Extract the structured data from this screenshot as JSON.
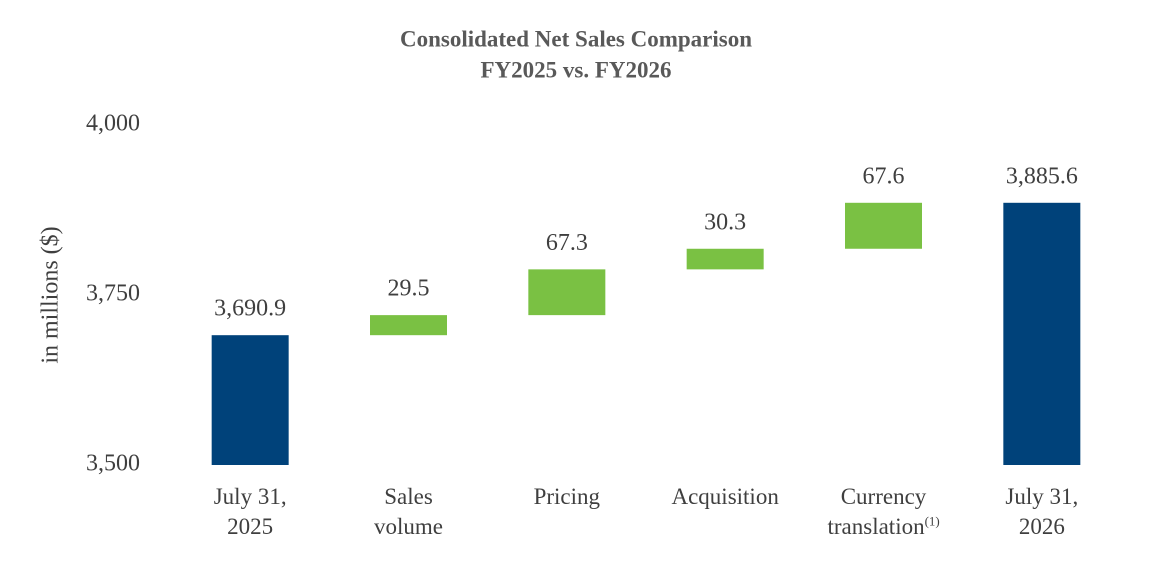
{
  "chart_data": {
    "type": "waterfall",
    "title": "Consolidated Net Sales Comparison",
    "subtitle": "FY2025 vs. FY2026",
    "y_axis_label": "in millions ($)",
    "categories": [
      "July 31, 2025",
      "Sales volume",
      "Pricing",
      "Acquisition",
      "Currency translation",
      "July 31, 2026"
    ],
    "category_notes": [
      null,
      null,
      null,
      null,
      "(1)",
      null
    ],
    "measures": [
      "total",
      "relative",
      "relative",
      "relative",
      "relative",
      "total"
    ],
    "values": [
      3690.9,
      29.5,
      67.3,
      30.3,
      67.6,
      3885.6
    ],
    "value_labels": [
      "3,690.9",
      "29.5",
      "67.3",
      "30.3",
      "67.6",
      "3,885.6"
    ],
    "colors": {
      "total": "#00427a",
      "relative": "#7ac143"
    },
    "ylim": [
      3500,
      4000
    ],
    "yticks": [
      {
        "value": 3500,
        "label": "3,500"
      },
      {
        "value": 3750,
        "label": "3,750"
      },
      {
        "value": 4000,
        "label": "4,000"
      }
    ],
    "grid": false
  }
}
